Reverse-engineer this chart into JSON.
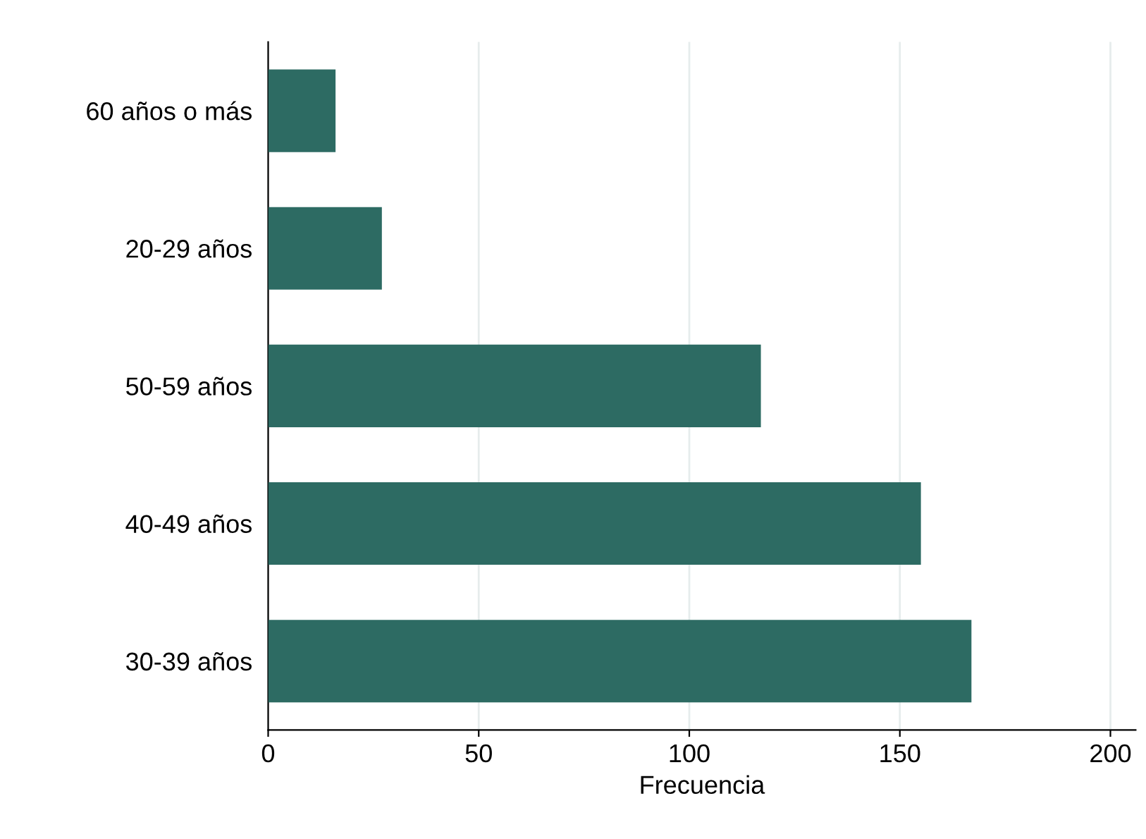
{
  "chart_data": {
    "type": "bar",
    "orientation": "horizontal",
    "categories": [
      "60 años o más",
      "20-29 años",
      "50-59 años",
      "40-49 años",
      "30-39 años"
    ],
    "values": [
      16,
      27,
      117,
      155,
      167
    ],
    "color": "#2d6b63",
    "xlabel": "Frecuencia",
    "xlim": [
      0,
      206
    ],
    "xticks": [
      0,
      50,
      100,
      150,
      200
    ],
    "grid": "x"
  }
}
